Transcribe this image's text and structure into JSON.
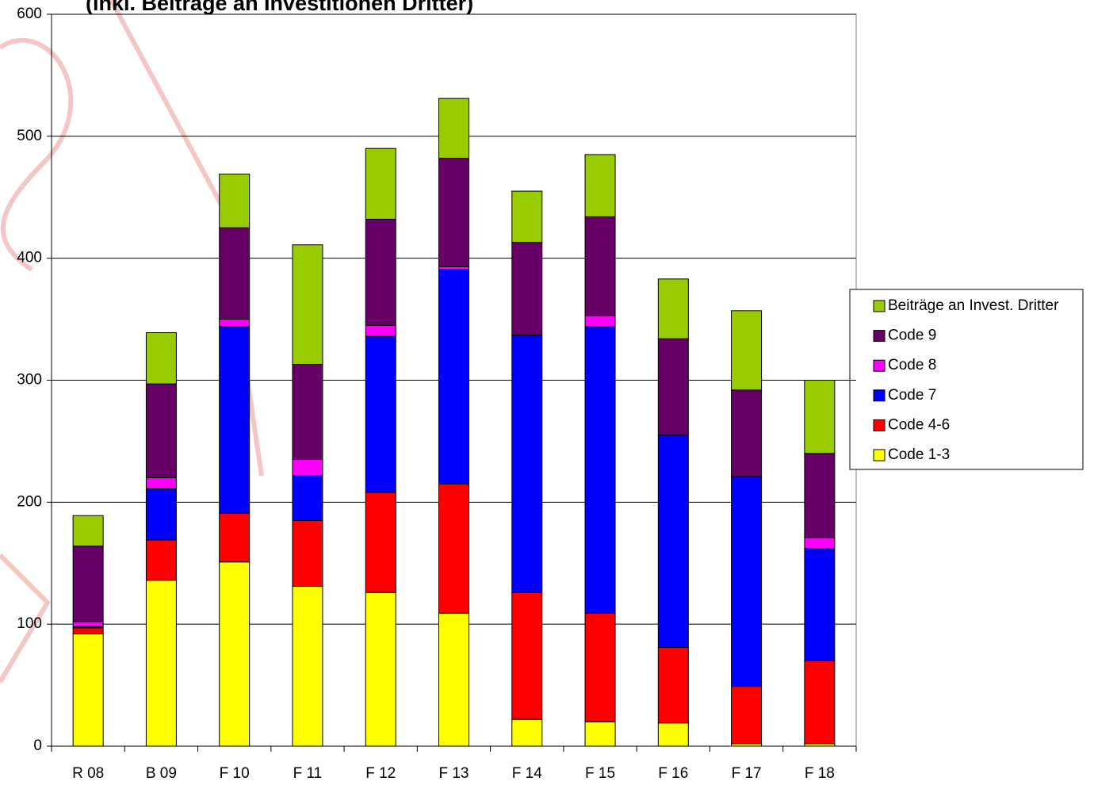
{
  "chart_data": {
    "type": "stacked-bar",
    "title": "(inkl. Beiträge an Investitionen Dritter)",
    "categories": [
      "R 08",
      "B 09",
      "F 10",
      "F 11",
      "F 12",
      "F 13",
      "F 14",
      "F 15",
      "F 16",
      "F 17",
      "F 18"
    ],
    "series": [
      {
        "name": "Code 1-3",
        "color": "#ffff00",
        "values": [
          92,
          136,
          151,
          131,
          126,
          109,
          22,
          20,
          19,
          2,
          2
        ]
      },
      {
        "name": "Code 4-6",
        "color": "#ff0000",
        "values": [
          5,
          33,
          40,
          54,
          82,
          106,
          104,
          89,
          62,
          47,
          68
        ]
      },
      {
        "name": "Code 7",
        "color": "#0000ff",
        "values": [
          1,
          42,
          153,
          37,
          128,
          176,
          211,
          235,
          174,
          172,
          92
        ]
      },
      {
        "name": "Code 8",
        "color": "#ff00ff",
        "values": [
          4,
          9,
          6,
          13,
          9,
          2,
          0,
          9,
          0,
          0,
          9
        ]
      },
      {
        "name": "Code 9",
        "color": "#660066",
        "values": [
          62,
          77,
          75,
          78,
          87,
          89,
          76,
          81,
          79,
          71,
          69
        ]
      },
      {
        "name": "Beiträge an Invest. Dritter",
        "color": "#99cc00",
        "values": [
          25,
          42,
          44,
          98,
          58,
          49,
          42,
          51,
          49,
          65,
          60
        ]
      }
    ],
    "ylim": [
      0,
      600
    ],
    "yticks": [
      0,
      100,
      200,
      300,
      400,
      500,
      600
    ],
    "grid": true,
    "legend": "right"
  }
}
